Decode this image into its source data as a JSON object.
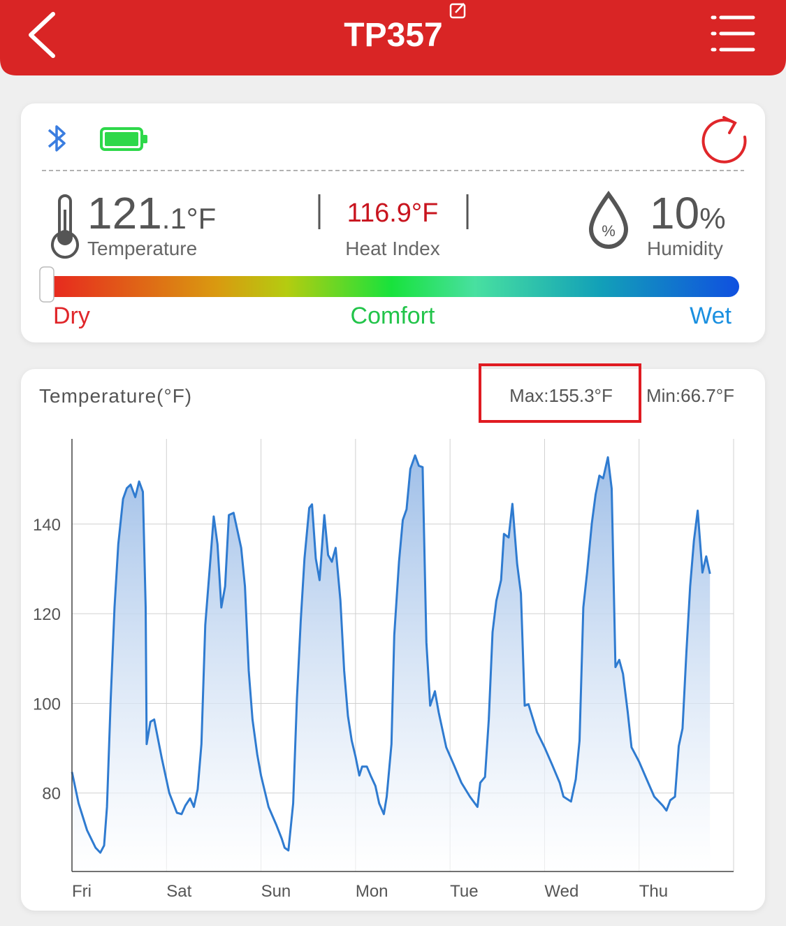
{
  "header": {
    "title": "TP357"
  },
  "readings": {
    "temperature": {
      "whole": "121",
      "fraction": ".1°F",
      "label": "Temperature"
    },
    "heat_index": {
      "value": "116.9°F",
      "label": "Heat Index"
    },
    "humidity": {
      "whole": "10",
      "unit": "%",
      "label": "Humidity",
      "icon_text": "%"
    }
  },
  "comfort_scale": {
    "left": "Dry",
    "middle": "Comfort",
    "right": "Wet"
  },
  "chart_data": {
    "type": "line",
    "title": "Temperature(°F)",
    "annotations": [
      "Max:155.3°F",
      "Min:66.7°F"
    ],
    "xlim": [
      0,
      7
    ],
    "xticks": [
      {
        "value": 0,
        "label": "Fri"
      },
      {
        "value": 1,
        "label": "Sat"
      },
      {
        "value": 2,
        "label": "Sun"
      },
      {
        "value": 3,
        "label": "Mon"
      },
      {
        "value": 4,
        "label": "Tue"
      },
      {
        "value": 5,
        "label": "Wed"
      },
      {
        "value": 6,
        "label": "Thu"
      }
    ],
    "ylim": [
      62.5,
      159
    ],
    "yticks": [
      80,
      100,
      120,
      140
    ],
    "grid": true,
    "x": [
      0,
      0.07,
      0.16,
      0.25,
      0.3,
      0.34,
      0.37,
      0.41,
      0.45,
      0.49,
      0.54,
      0.58,
      0.62,
      0.67,
      0.71,
      0.75,
      0.78,
      0.79,
      0.83,
      0.87,
      0.95,
      1.03,
      1.11,
      1.16,
      1.2,
      1.25,
      1.29,
      1.33,
      1.37,
      1.41,
      1.46,
      1.5,
      1.54,
      1.58,
      1.62,
      1.66,
      1.71,
      1.75,
      1.79,
      1.83,
      1.87,
      1.91,
      1.96,
      2.0,
      2.08,
      2.16,
      2.22,
      2.25,
      2.29,
      2.34,
      2.38,
      2.42,
      2.46,
      2.51,
      2.54,
      2.58,
      2.62,
      2.67,
      2.71,
      2.75,
      2.79,
      2.84,
      2.88,
      2.92,
      2.96,
      3.0,
      3.04,
      3.07,
      3.12,
      3.16,
      3.21,
      3.25,
      3.3,
      3.33,
      3.38,
      3.41,
      3.46,
      3.5,
      3.54,
      3.58,
      3.63,
      3.67,
      3.71,
      3.75,
      3.79,
      3.84,
      3.88,
      3.96,
      4.04,
      4.12,
      4.21,
      4.29,
      4.32,
      4.37,
      4.41,
      4.45,
      4.49,
      4.54,
      4.57,
      4.62,
      4.66,
      4.71,
      4.75,
      4.79,
      4.83,
      4.92,
      5.0,
      5.08,
      5.16,
      5.2,
      5.28,
      5.33,
      5.37,
      5.41,
      5.45,
      5.5,
      5.54,
      5.58,
      5.62,
      5.67,
      5.71,
      5.75,
      5.79,
      5.83,
      5.88,
      5.92,
      6.0,
      6.08,
      6.16,
      6.25,
      6.29,
      6.33,
      6.38,
      6.42,
      6.46,
      6.5,
      6.54,
      6.58,
      6.62,
      6.67,
      6.71,
      6.75
    ],
    "series": [
      {
        "name": "Temperature",
        "color": "#2f7bd0",
        "values": [
          84.7,
          77.7,
          71.7,
          67.8,
          66.7,
          68.3,
          76.9,
          101.1,
          121.4,
          135.5,
          145.6,
          148.0,
          148.8,
          146.0,
          149.5,
          147.2,
          121.4,
          90.9,
          95.9,
          96.4,
          87.8,
          80.0,
          75.6,
          75.3,
          77.2,
          78.8,
          76.9,
          80.8,
          90.9,
          117.5,
          130.8,
          141.7,
          135.5,
          121.4,
          126.1,
          142.0,
          142.5,
          138.6,
          134.7,
          126.1,
          107.3,
          96.4,
          88.6,
          83.9,
          76.9,
          73.0,
          69.8,
          67.8,
          67.2,
          77.7,
          101.1,
          118.3,
          132.3,
          143.6,
          144.4,
          132.3,
          127.5,
          142.0,
          133.1,
          131.6,
          134.7,
          123.0,
          107.3,
          97.2,
          91.7,
          88.1,
          83.9,
          85.9,
          85.9,
          83.9,
          81.6,
          77.7,
          75.3,
          79.2,
          90.9,
          115.2,
          131.6,
          140.9,
          143.3,
          152.3,
          155.3,
          153.0,
          152.7,
          113.6,
          99.5,
          102.7,
          98.0,
          90.2,
          86.3,
          82.3,
          79.2,
          76.9,
          82.3,
          83.6,
          96.4,
          115.9,
          122.9,
          127.5,
          137.8,
          137.0,
          144.5,
          131.1,
          124.5,
          99.5,
          99.8,
          93.6,
          90.2,
          86.3,
          82.3,
          79.2,
          78.1,
          83.1,
          91.7,
          121.4,
          129.2,
          140.2,
          146.6,
          150.8,
          150.2,
          154.9,
          147.9,
          108.1,
          109.7,
          106.6,
          98.0,
          90.2,
          87.0,
          83.1,
          79.2,
          77.2,
          76.1,
          78.4,
          79.2,
          90.5,
          94.4,
          111.3,
          126.1,
          136.3,
          143.0,
          129.2,
          132.8,
          128.9
        ]
      }
    ]
  }
}
